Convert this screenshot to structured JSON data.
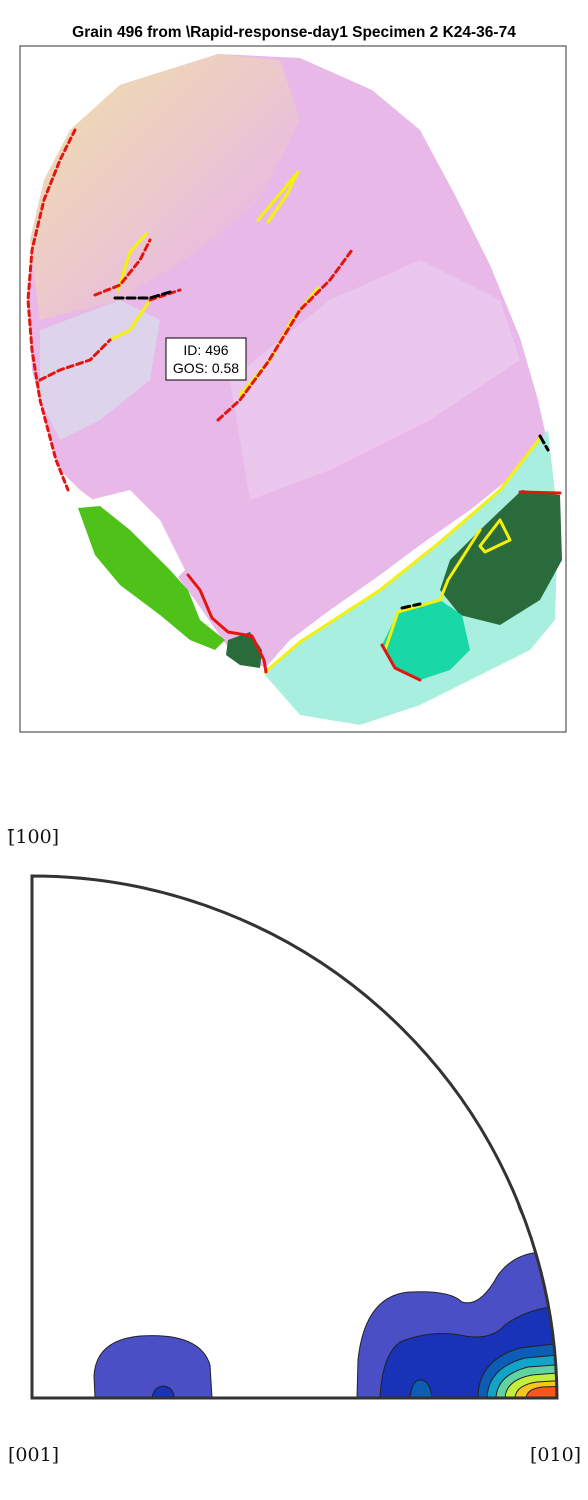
{
  "figure": {
    "title": "Grain 496 from \\Rapid-response-day1 Specimen 2 K24-36-74"
  },
  "map": {
    "annotation_lines": [
      "ID: 496",
      "GOS: 0.58"
    ],
    "colors": {
      "boundary_high_angle": "#e3160f",
      "boundary_twin": "#f4f10c",
      "boundary_other": "#000000",
      "pink_region": "#e7b8e8",
      "cream_region": "#ecdcb8",
      "cyan_region": "#a9efe0",
      "green_region": "#4fc21a",
      "dark_green_region": "#2a6b3b",
      "teal_region": "#19d8a8"
    }
  },
  "pole_figure": {
    "labels": {
      "top": "[̄100]",
      "bottom_left": "[001]",
      "bottom_right": "[010]"
    },
    "contour_colors": [
      "#4b4fc6",
      "#1832b8",
      "#0d5db6",
      "#12a3c9",
      "#5fd3a0",
      "#c4ee3c",
      "#f8c51f",
      "#f7561c"
    ]
  }
}
